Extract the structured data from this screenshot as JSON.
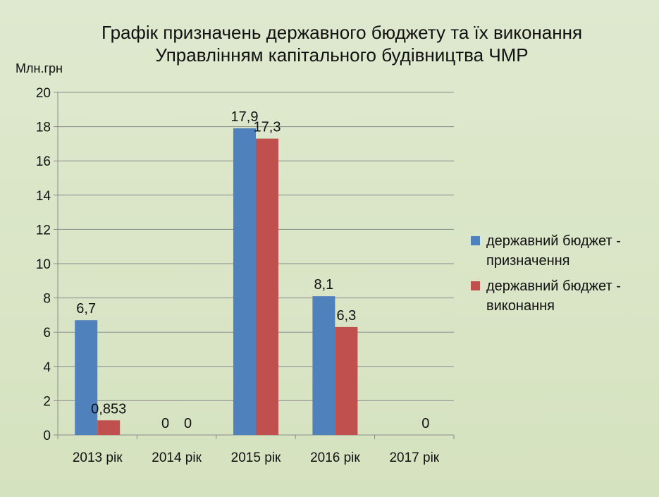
{
  "title": {
    "line1": "Графік призначень державного бюджету та їх виконання",
    "line2": "Управлінням капітального будівництва ЧМР"
  },
  "chart_data": {
    "type": "bar",
    "title": "Графік призначень державного бюджету та їх виконання Управлінням капітального будівництва ЧМР",
    "ylabel": "Млн.грн",
    "xlabel": "",
    "ylim": [
      0,
      20
    ],
    "yticks": [
      "0",
      "2",
      "4",
      "6",
      "8",
      "10",
      "12",
      "14",
      "16",
      "18",
      "20"
    ],
    "categories": [
      "2013 рік",
      "2014 рік",
      "2015 рік",
      "2016 рік",
      "2017 рік"
    ],
    "series": [
      {
        "name": "державний бюджет - призначення",
        "color": "#4f81bd",
        "values": [
          6.7,
          0,
          17.9,
          8.1,
          null
        ],
        "labels": [
          "6,7",
          "0",
          "17,9",
          "8,1",
          ""
        ]
      },
      {
        "name": "державний бюджет - виконання",
        "color": "#c0504d",
        "values": [
          0.853,
          0,
          17.3,
          6.3,
          0
        ],
        "labels": [
          "0,853",
          "0",
          "17,3",
          "6,3",
          "0"
        ]
      }
    ],
    "legend": {
      "position": "right",
      "items": [
        {
          "lines": [
            "державний бюджет -",
            "призначення"
          ],
          "color": "#4f81bd"
        },
        {
          "lines": [
            "державний бюджет -",
            "виконання"
          ],
          "color": "#c0504d"
        }
      ]
    },
    "grid": true
  }
}
